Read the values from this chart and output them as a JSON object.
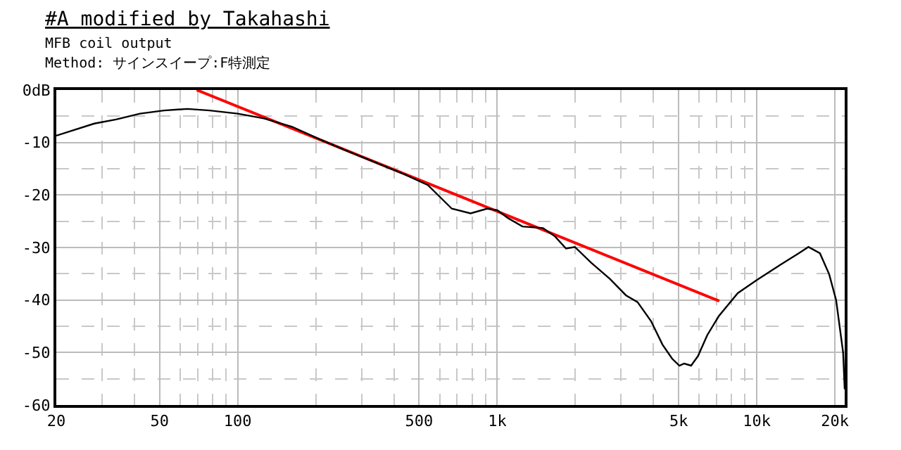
{
  "chart_data": {
    "type": "line",
    "title": "#A modified by Takahashi",
    "subtitle": "MFB coil output",
    "annotations": [
      "Method: サインスイープ:F特測定"
    ],
    "log": "x",
    "grid": true,
    "marker": "none",
    "line_style": "solid",
    "xlim": [
      20,
      21800
    ],
    "ylim": [
      -60,
      0
    ],
    "xticks": [
      20,
      {
        "value": 30,
        "label": null
      },
      {
        "value": 40,
        "label": null
      },
      50,
      {
        "value": 60,
        "label": null
      },
      {
        "value": 70,
        "label": null
      },
      {
        "value": 80,
        "label": null
      },
      {
        "value": 90,
        "label": null
      },
      100,
      {
        "value": 200,
        "label": null
      },
      {
        "value": 300,
        "label": null
      },
      {
        "value": 400,
        "label": null
      },
      500,
      {
        "value": 600,
        "label": null
      },
      {
        "value": 700,
        "label": null
      },
      {
        "value": 800,
        "label": null
      },
      {
        "value": 900,
        "label": null
      },
      {
        "value": 1000,
        "label": "1k"
      },
      {
        "value": 2000,
        "label": null
      },
      {
        "value": 3000,
        "label": null
      },
      {
        "value": 4000,
        "label": null
      },
      {
        "value": 5000,
        "label": "5k"
      },
      {
        "value": 6000,
        "label": null
      },
      {
        "value": 7000,
        "label": null
      },
      {
        "value": 8000,
        "label": null
      },
      {
        "value": 9000,
        "label": null
      },
      {
        "value": 10000,
        "label": "10k"
      },
      {
        "value": 20000,
        "label": "20k"
      }
    ],
    "yticks": [
      {
        "value": 0,
        "label": "0dB"
      },
      {
        "value": -5,
        "label": null
      },
      -10,
      {
        "value": -15,
        "label": null
      },
      -20,
      {
        "value": -25,
        "label": null
      },
      -30,
      {
        "value": -35,
        "label": null
      },
      -40,
      {
        "value": -45,
        "label": null
      },
      -50,
      {
        "value": -55,
        "label": null
      },
      -60
    ],
    "series": [
      {
        "color": "#000000",
        "x": [
          20,
          28,
          34,
          42,
          52,
          64,
          78,
          100,
          126,
          162,
          207,
          264,
          340,
          436,
          540,
          668,
          789,
          913,
          1000,
          1100,
          1250,
          1500,
          1670,
          1840,
          1990,
          2300,
          2720,
          3130,
          3470,
          3910,
          4330,
          4720,
          5030,
          5250,
          5580,
          5930,
          6440,
          7130,
          8440,
          10000,
          12300,
          14500,
          15800,
          17500,
          19000,
          20200,
          21500,
          21800
        ],
        "values": [
          -8.7,
          -6.4,
          -5.6,
          -4.5,
          -3.9,
          -3.6,
          -3.9,
          -4.5,
          -5.4,
          -7.0,
          -9.4,
          -11.6,
          -13.8,
          -16.0,
          -18.1,
          -22.6,
          -23.5,
          -22.6,
          -22.9,
          -24.4,
          -26,
          -26.3,
          -27.9,
          -30.2,
          -29.9,
          -32.9,
          -36,
          -39.1,
          -40.4,
          -44,
          -48.5,
          -51.2,
          -52.5,
          -52.1,
          -52.5,
          -50.7,
          -46.7,
          -43.1,
          -38.7,
          -36.2,
          -33.3,
          -31.1,
          -29.9,
          -31.1,
          -35.1,
          -40,
          -50,
          -57
        ]
      },
      {
        "color": "#ff0000",
        "x": [
          69.5,
          7170
        ],
        "values": [
          0,
          -40.2
        ]
      }
    ]
  }
}
